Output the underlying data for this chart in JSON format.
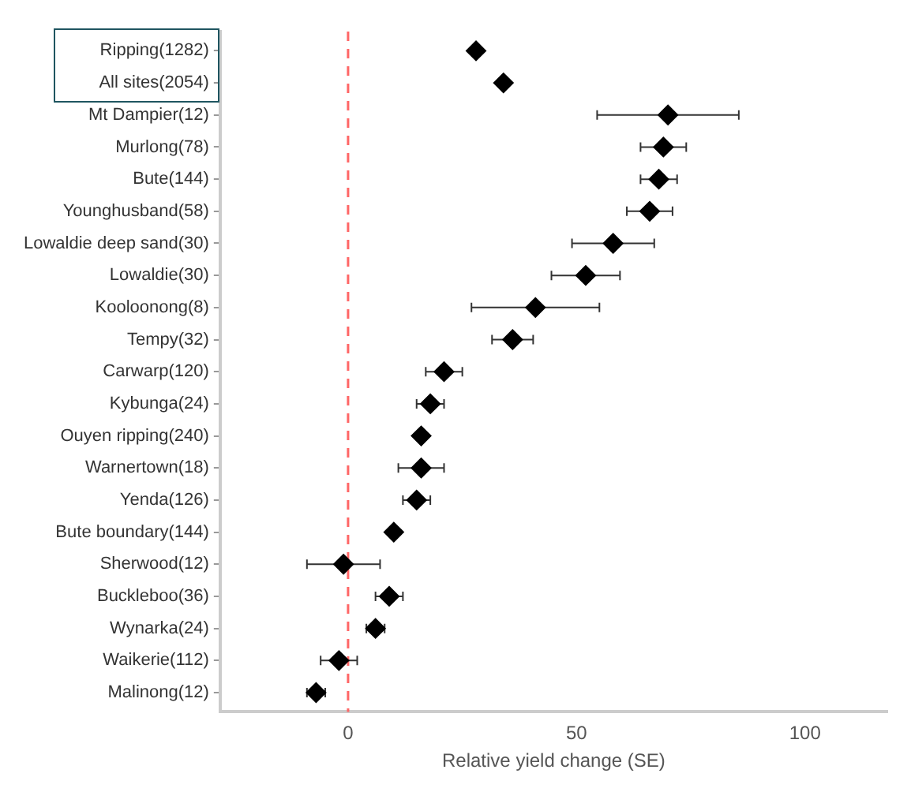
{
  "chart_data": {
    "type": "scatter",
    "orientation": "horizontal",
    "xlabel": "Relative yield change (SE)",
    "categories": [
      "Ripping(1282)",
      "All sites(2054)",
      "Mt Dampier(12)",
      "Murlong(78)",
      "Bute(144)",
      "Younghusband(58)",
      "Lowaldie deep sand(30)",
      "Lowaldie(30)",
      "Kooloonong(8)",
      "Tempy(32)",
      "Carwarp(120)",
      "Kybunga(24)",
      "Ouyen ripping(240)",
      "Warnertown(18)",
      "Yenda(126)",
      "Bute boundary(144)",
      "Sherwood(12)",
      "Buckleboo(36)",
      "Wynarka(24)",
      "Waikerie(112)",
      "Malinong(12)"
    ],
    "values": [
      28,
      34,
      70,
      69,
      68,
      66,
      58,
      52,
      41,
      36,
      21,
      18,
      16,
      16,
      15,
      10,
      -1,
      9,
      6,
      -2,
      -7
    ],
    "errors": [
      null,
      null,
      15.5,
      5,
      4,
      5,
      9,
      7.5,
      14,
      4.5,
      4,
      3,
      null,
      5,
      3,
      null,
      8,
      3,
      2,
      4,
      2
    ],
    "color": "#000000",
    "marker": "diamond",
    "xlim": [
      -28,
      118
    ],
    "xticks": [
      0,
      50,
      100
    ],
    "grid": false,
    "ref_lines": [
      {
        "axis": "x",
        "value": 0,
        "color": "#ff6666",
        "line_style": "dashed"
      }
    ]
  }
}
